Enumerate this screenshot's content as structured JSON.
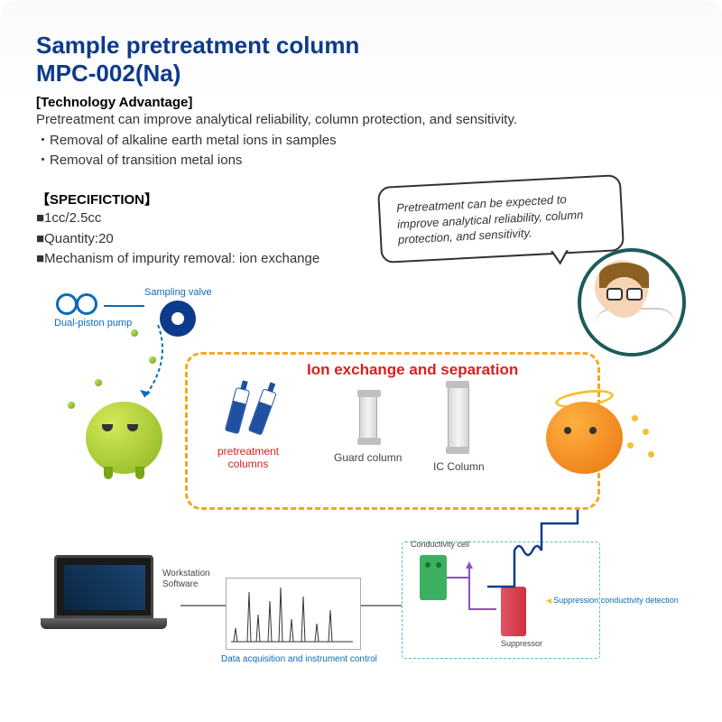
{
  "title_line1": "Sample pretreatment column",
  "title_line2": "MPC-002(Na)",
  "tech_header": "[Technology Advantage]",
  "tech_desc": "Pretreatment can improve analytical reliability, column protection, and sensitivity.",
  "tech_bullet1": "・Removal of alkaline earth metal ions in samples",
  "tech_bullet2": "・Removal of transition metal ions",
  "spec_header": "【SPECIFICTION】",
  "spec_item1": "■1cc/2.5cc",
  "spec_item2": "■Quantity:20",
  "spec_item3": "■Mechanism of impurity removal: ion exchange",
  "speech": "Pretreatment can be expected to improve analytical reliability, column protection, and sensitivity.",
  "labels": {
    "pump": "Dual-piston pump",
    "valve": "Sampling valve",
    "ion_title": "Ion exchange and separation",
    "pretreat": "pretreatment columns",
    "guard": "Guard column",
    "ic": "IC Column",
    "workstation": "Workstation Software",
    "data_acq": "Data acquisition and instrument control",
    "cond_cell": "Conductivity cell",
    "suppressor": "Suppressor",
    "supp_det": "Suppression conductivity detection"
  },
  "colors": {
    "title": "#0d3b8c",
    "red": "#d92020",
    "dash_orange": "#f5a623",
    "link_blue": "#0d6bb5",
    "cyan_dash": "#5bb5d5",
    "green_cell": "#3cb060",
    "suppressor": "#d03040"
  },
  "chromatogram": {
    "peaks_x": [
      10,
      25,
      35,
      48,
      60,
      72,
      85,
      100,
      115
    ],
    "peaks_h": [
      15,
      55,
      30,
      45,
      60,
      25,
      50,
      20,
      35
    ],
    "stroke": "#333"
  }
}
